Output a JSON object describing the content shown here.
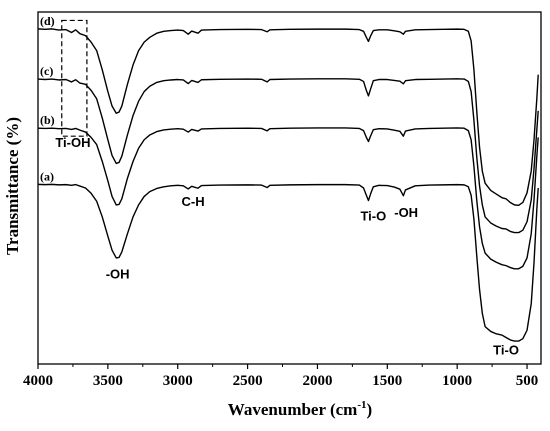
{
  "chart_data": {
    "type": "line",
    "xlabel": "Wavenumber (cm",
    "xlabel_superscript": "-1",
    "xlabel_suffix": ")",
    "ylabel": "Transmittance (%)",
    "xlim": [
      4000,
      400
    ],
    "x_reversed": true,
    "x_ticks": [
      4000,
      3500,
      3000,
      2500,
      2000,
      1500,
      1000,
      500
    ],
    "y_ticks_shown": false,
    "grid": false,
    "legend": "none",
    "colors": {
      "line": "#000000",
      "axis": "#000000",
      "background": "#ffffff"
    },
    "series": [
      {
        "name": "(d)",
        "points": [
          [
            4000,
            0.79
          ],
          [
            3950,
            0.788
          ],
          [
            3900,
            0.79
          ],
          [
            3850,
            0.785
          ],
          [
            3800,
            0.787
          ],
          [
            3760,
            0.775
          ],
          [
            3730,
            0.786
          ],
          [
            3700,
            0.77
          ],
          [
            3660,
            0.762
          ],
          [
            3620,
            0.735
          ],
          [
            3580,
            0.7
          ],
          [
            3540,
            0.62
          ],
          [
            3500,
            0.53
          ],
          [
            3470,
            0.47
          ],
          [
            3440,
            0.44
          ],
          [
            3420,
            0.445
          ],
          [
            3400,
            0.47
          ],
          [
            3360,
            0.56
          ],
          [
            3320,
            0.64
          ],
          [
            3280,
            0.7
          ],
          [
            3240,
            0.735
          ],
          [
            3200,
            0.755
          ],
          [
            3150,
            0.772
          ],
          [
            3100,
            0.78
          ],
          [
            3050,
            0.783
          ],
          [
            3000,
            0.785
          ],
          [
            2960,
            0.783
          ],
          [
            2925,
            0.768
          ],
          [
            2900,
            0.781
          ],
          [
            2855,
            0.772
          ],
          [
            2830,
            0.785
          ],
          [
            2700,
            0.787
          ],
          [
            2500,
            0.788
          ],
          [
            2400,
            0.787
          ],
          [
            2360,
            0.778
          ],
          [
            2340,
            0.786
          ],
          [
            2200,
            0.788
          ],
          [
            2000,
            0.789
          ],
          [
            1800,
            0.789
          ],
          [
            1700,
            0.787
          ],
          [
            1670,
            0.78
          ],
          [
            1650,
            0.755
          ],
          [
            1635,
            0.738
          ],
          [
            1620,
            0.76
          ],
          [
            1600,
            0.783
          ],
          [
            1560,
            0.786
          ],
          [
            1500,
            0.786
          ],
          [
            1450,
            0.782
          ],
          [
            1410,
            0.778
          ],
          [
            1385,
            0.768
          ],
          [
            1370,
            0.78
          ],
          [
            1300,
            0.786
          ],
          [
            1200,
            0.787
          ],
          [
            1100,
            0.788
          ],
          [
            1000,
            0.789
          ],
          [
            950,
            0.788
          ],
          [
            920,
            0.78
          ],
          [
            900,
            0.74
          ],
          [
            880,
            0.62
          ],
          [
            860,
            0.45
          ],
          [
            840,
            0.3
          ],
          [
            820,
            0.2
          ],
          [
            800,
            0.15
          ],
          [
            760,
            0.12
          ],
          [
            720,
            0.105
          ],
          [
            680,
            0.09
          ],
          [
            650,
            0.085
          ],
          [
            620,
            0.07
          ],
          [
            590,
            0.06
          ],
          [
            560,
            0.058
          ],
          [
            530,
            0.07
          ],
          [
            500,
            0.11
          ],
          [
            470,
            0.2
          ],
          [
            450,
            0.33
          ],
          [
            430,
            0.5
          ],
          [
            420,
            0.6
          ]
        ]
      },
      {
        "name": "(c)",
        "points": [
          [
            4000,
            0.582
          ],
          [
            3950,
            0.58
          ],
          [
            3900,
            0.582
          ],
          [
            3850,
            0.578
          ],
          [
            3800,
            0.58
          ],
          [
            3760,
            0.57
          ],
          [
            3730,
            0.579
          ],
          [
            3700,
            0.565
          ],
          [
            3660,
            0.56
          ],
          [
            3620,
            0.535
          ],
          [
            3580,
            0.5
          ],
          [
            3540,
            0.42
          ],
          [
            3500,
            0.33
          ],
          [
            3470,
            0.265
          ],
          [
            3440,
            0.232
          ],
          [
            3420,
            0.236
          ],
          [
            3400,
            0.262
          ],
          [
            3360,
            0.35
          ],
          [
            3320,
            0.43
          ],
          [
            3280,
            0.49
          ],
          [
            3240,
            0.53
          ],
          [
            3200,
            0.552
          ],
          [
            3150,
            0.568
          ],
          [
            3100,
            0.575
          ],
          [
            3050,
            0.578
          ],
          [
            3000,
            0.58
          ],
          [
            2960,
            0.578
          ],
          [
            2925,
            0.563
          ],
          [
            2900,
            0.576
          ],
          [
            2855,
            0.568
          ],
          [
            2830,
            0.579
          ],
          [
            2700,
            0.581
          ],
          [
            2500,
            0.582
          ],
          [
            2400,
            0.581
          ],
          [
            2360,
            0.57
          ],
          [
            2340,
            0.58
          ],
          [
            2200,
            0.582
          ],
          [
            2000,
            0.583
          ],
          [
            1800,
            0.583
          ],
          [
            1700,
            0.581
          ],
          [
            1670,
            0.572
          ],
          [
            1650,
            0.535
          ],
          [
            1635,
            0.512
          ],
          [
            1620,
            0.54
          ],
          [
            1600,
            0.575
          ],
          [
            1560,
            0.58
          ],
          [
            1500,
            0.58
          ],
          [
            1450,
            0.576
          ],
          [
            1410,
            0.573
          ],
          [
            1385,
            0.562
          ],
          [
            1370,
            0.575
          ],
          [
            1300,
            0.58
          ],
          [
            1200,
            0.581
          ],
          [
            1100,
            0.582
          ],
          [
            1000,
            0.583
          ],
          [
            950,
            0.582
          ],
          [
            920,
            0.572
          ],
          [
            900,
            0.53
          ],
          [
            880,
            0.41
          ],
          [
            860,
            0.26
          ],
          [
            840,
            0.14
          ],
          [
            820,
            0.06
          ],
          [
            800,
            0.01
          ],
          [
            760,
            -0.015
          ],
          [
            720,
            -0.028
          ],
          [
            680,
            -0.038
          ],
          [
            650,
            -0.04
          ],
          [
            620,
            -0.05
          ],
          [
            590,
            -0.055
          ],
          [
            560,
            -0.055
          ],
          [
            530,
            -0.045
          ],
          [
            500,
            -0.01
          ],
          [
            470,
            0.08
          ],
          [
            450,
            0.21
          ],
          [
            430,
            0.37
          ],
          [
            420,
            0.45
          ]
        ]
      },
      {
        "name": "(b)",
        "points": [
          [
            4000,
            0.378
          ],
          [
            3950,
            0.377
          ],
          [
            3900,
            0.378
          ],
          [
            3850,
            0.376
          ],
          [
            3800,
            0.377
          ],
          [
            3760,
            0.373
          ],
          [
            3730,
            0.377
          ],
          [
            3700,
            0.37
          ],
          [
            3660,
            0.362
          ],
          [
            3620,
            0.34
          ],
          [
            3580,
            0.31
          ],
          [
            3540,
            0.24
          ],
          [
            3500,
            0.16
          ],
          [
            3470,
            0.095
          ],
          [
            3440,
            0.06
          ],
          [
            3420,
            0.062
          ],
          [
            3400,
            0.085
          ],
          [
            3360,
            0.17
          ],
          [
            3320,
            0.24
          ],
          [
            3280,
            0.295
          ],
          [
            3240,
            0.33
          ],
          [
            3200,
            0.35
          ],
          [
            3150,
            0.364
          ],
          [
            3100,
            0.371
          ],
          [
            3050,
            0.374
          ],
          [
            3000,
            0.376
          ],
          [
            2960,
            0.374
          ],
          [
            2925,
            0.362
          ],
          [
            2900,
            0.373
          ],
          [
            2855,
            0.366
          ],
          [
            2830,
            0.375
          ],
          [
            2700,
            0.377
          ],
          [
            2500,
            0.378
          ],
          [
            2400,
            0.377
          ],
          [
            2360,
            0.367
          ],
          [
            2340,
            0.376
          ],
          [
            2200,
            0.378
          ],
          [
            2000,
            0.379
          ],
          [
            1800,
            0.379
          ],
          [
            1700,
            0.377
          ],
          [
            1670,
            0.368
          ],
          [
            1650,
            0.34
          ],
          [
            1635,
            0.323
          ],
          [
            1620,
            0.345
          ],
          [
            1600,
            0.372
          ],
          [
            1560,
            0.376
          ],
          [
            1500,
            0.375
          ],
          [
            1450,
            0.37
          ],
          [
            1410,
            0.365
          ],
          [
            1385,
            0.345
          ],
          [
            1370,
            0.366
          ],
          [
            1300,
            0.375
          ],
          [
            1200,
            0.377
          ],
          [
            1100,
            0.378
          ],
          [
            1000,
            0.379
          ],
          [
            950,
            0.378
          ],
          [
            920,
            0.368
          ],
          [
            900,
            0.33
          ],
          [
            880,
            0.22
          ],
          [
            860,
            0.08
          ],
          [
            840,
            -0.03
          ],
          [
            820,
            -0.1
          ],
          [
            800,
            -0.14
          ],
          [
            760,
            -0.165
          ],
          [
            720,
            -0.178
          ],
          [
            680,
            -0.188
          ],
          [
            650,
            -0.192
          ],
          [
            620,
            -0.2
          ],
          [
            590,
            -0.205
          ],
          [
            560,
            -0.205
          ],
          [
            530,
            -0.195
          ],
          [
            500,
            -0.16
          ],
          [
            470,
            -0.06
          ],
          [
            450,
            0.08
          ],
          [
            430,
            0.26
          ],
          [
            420,
            0.34
          ]
        ]
      },
      {
        "name": "(a)",
        "points": [
          [
            4000,
            0.145
          ],
          [
            3950,
            0.144
          ],
          [
            3900,
            0.145
          ],
          [
            3850,
            0.143
          ],
          [
            3800,
            0.144
          ],
          [
            3760,
            0.141
          ],
          [
            3730,
            0.144
          ],
          [
            3700,
            0.138
          ],
          [
            3660,
            0.13
          ],
          [
            3620,
            0.108
          ],
          [
            3580,
            0.075
          ],
          [
            3540,
            0.01
          ],
          [
            3500,
            -0.07
          ],
          [
            3470,
            -0.128
          ],
          [
            3440,
            -0.16
          ],
          [
            3420,
            -0.158
          ],
          [
            3400,
            -0.135
          ],
          [
            3360,
            -0.06
          ],
          [
            3320,
            0.01
          ],
          [
            3280,
            0.06
          ],
          [
            3240,
            0.095
          ],
          [
            3200,
            0.115
          ],
          [
            3150,
            0.128
          ],
          [
            3100,
            0.135
          ],
          [
            3050,
            0.139
          ],
          [
            3000,
            0.141
          ],
          [
            2960,
            0.139
          ],
          [
            2925,
            0.126
          ],
          [
            2900,
            0.137
          ],
          [
            2855,
            0.129
          ],
          [
            2830,
            0.14
          ],
          [
            2700,
            0.142
          ],
          [
            2500,
            0.143
          ],
          [
            2400,
            0.142
          ],
          [
            2360,
            0.132
          ],
          [
            2340,
            0.141
          ],
          [
            2200,
            0.143
          ],
          [
            2000,
            0.144
          ],
          [
            1800,
            0.144
          ],
          [
            1700,
            0.142
          ],
          [
            1670,
            0.13
          ],
          [
            1650,
            0.1
          ],
          [
            1635,
            0.078
          ],
          [
            1620,
            0.105
          ],
          [
            1600,
            0.135
          ],
          [
            1560,
            0.141
          ],
          [
            1500,
            0.14
          ],
          [
            1450,
            0.134
          ],
          [
            1410,
            0.125
          ],
          [
            1385,
            0.098
          ],
          [
            1370,
            0.122
          ],
          [
            1300,
            0.139
          ],
          [
            1200,
            0.142
          ],
          [
            1100,
            0.143
          ],
          [
            1000,
            0.144
          ],
          [
            950,
            0.143
          ],
          [
            920,
            0.135
          ],
          [
            900,
            0.1
          ],
          [
            880,
            0.0
          ],
          [
            860,
            -0.15
          ],
          [
            840,
            -0.29
          ],
          [
            820,
            -0.39
          ],
          [
            800,
            -0.445
          ],
          [
            760,
            -0.465
          ],
          [
            720,
            -0.475
          ],
          [
            680,
            -0.48
          ],
          [
            650,
            -0.49
          ],
          [
            620,
            -0.5
          ],
          [
            590,
            -0.505
          ],
          [
            560,
            -0.505
          ],
          [
            530,
            -0.495
          ],
          [
            500,
            -0.46
          ],
          [
            470,
            -0.35
          ],
          [
            450,
            -0.18
          ],
          [
            430,
            0.04
          ],
          [
            420,
            0.13
          ]
        ]
      }
    ],
    "annotations": [
      {
        "text": "-OH",
        "x": 3430,
        "y": -0.245
      },
      {
        "text": "C-H",
        "x": 2890,
        "y": 0.055
      },
      {
        "text": "Ti-O",
        "x": 1600,
        "y": -0.005
      },
      {
        "text": "-OH",
        "x": 1365,
        "y": 0.01
      },
      {
        "text": "Ti-O",
        "x": 650,
        "y": -0.56
      },
      {
        "text": "Ti-OH",
        "x": 3750,
        "y": 0.3
      }
    ],
    "highlight_box": {
      "x_range": [
        3830,
        3650
      ],
      "y_range": [
        0.345,
        0.825
      ],
      "style": "dashed"
    }
  }
}
